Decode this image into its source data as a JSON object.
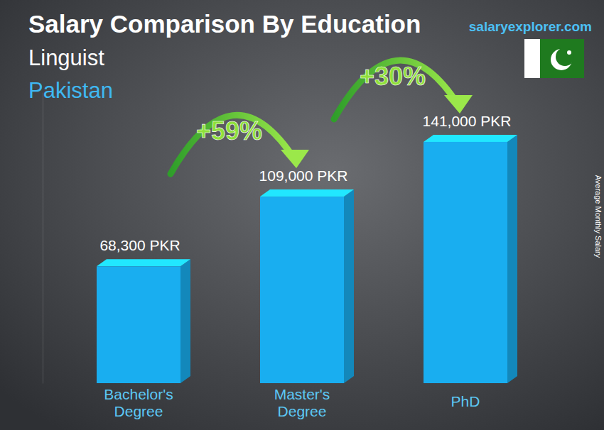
{
  "chart_data": {
    "type": "bar",
    "title": "Salary Comparison By Education",
    "subtitle": "Linguist",
    "location": "Pakistan",
    "source": "salaryexplorer.com",
    "y_label": "Average Monthly Salary",
    "categories": [
      "Bachelor's Degree",
      "Master's Degree",
      "PhD"
    ],
    "values": [
      68300,
      109000,
      141000
    ],
    "value_labels": [
      "68,300 PKR",
      "109,000 PKR",
      "141,000 PKR"
    ],
    "data_labels": true,
    "annotations": [
      "+59%",
      "+30%"
    ],
    "color": "#19aef0",
    "ylim": [
      0,
      170000
    ],
    "yticks": [],
    "tick_labels": false
  }
}
